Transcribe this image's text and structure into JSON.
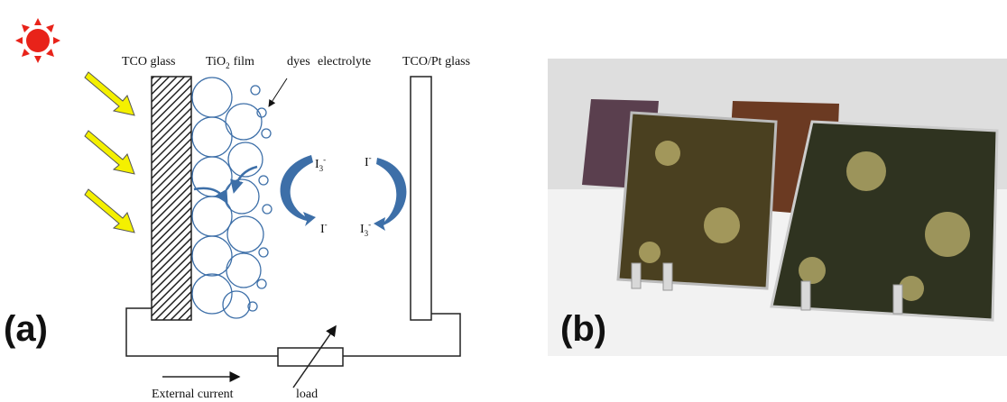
{
  "panel_a": {
    "label": "(a)",
    "tco_glass": "TCO glass",
    "tio2_film": {
      "base": "TiO",
      "sub": "2",
      "rest": "film"
    },
    "dyes": "dyes",
    "electrolyte": "electrolyte",
    "tco_pt_glass": "TCO/Pt glass",
    "ions": [
      {
        "base": "I",
        "sub": "3",
        "sup": "-"
      },
      {
        "base": "I",
        "sup": "-"
      },
      {
        "base": "I",
        "sup": "-"
      },
      {
        "base": "I",
        "sub": "3",
        "sup": "-"
      }
    ],
    "external_current": "External current",
    "load": "load"
  },
  "panel_b": {
    "label": "(b)"
  }
}
